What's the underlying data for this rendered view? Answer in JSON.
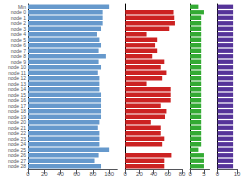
{
  "chart_data": [
    {
      "type": "bar",
      "orientation": "horizontal",
      "categories": [
        "Min",
        "node 0",
        "node 1",
        "node 2",
        "node 3",
        "node 4",
        "node 5",
        "node 6",
        "node 7",
        "node 8",
        "node 9",
        "node 10",
        "node 11",
        "node 12",
        "node 13",
        "node 14",
        "node 15",
        "node 16",
        "node 17",
        "node 18",
        "node 19",
        "node 20",
        "node 21",
        "node 22",
        "node 23",
        "node 24",
        "node 25",
        "node 26",
        "node 27",
        "node 28"
      ],
      "values": [
        100,
        92,
        92,
        92,
        90,
        85,
        88,
        90,
        87,
        96,
        87,
        90,
        86,
        88,
        88,
        88,
        90,
        90,
        90,
        90,
        90,
        88,
        86,
        88,
        88,
        88,
        100,
        87,
        82,
        90
      ],
      "color": "#6699cc",
      "xlim": [
        0,
        110
      ],
      "xticks": [
        0,
        20,
        40,
        60,
        80,
        100
      ],
      "grid": false
    },
    {
      "type": "bar",
      "orientation": "horizontal",
      "categories": [
        "Min",
        "node 0",
        "node 1",
        "node 2",
        "node 3",
        "node 4",
        "node 5",
        "node 6",
        "node 7",
        "node 8",
        "node 9",
        "node 10",
        "node 11",
        "node 12",
        "node 13",
        "node 14",
        "node 15",
        "node 16",
        "node 17",
        "node 18",
        "node 19",
        "node 20",
        "node 21",
        "node 22",
        "node 23",
        "node 24",
        "node 25",
        "node 26",
        "node 27",
        "node 28"
      ],
      "values": [
        0,
        68,
        69,
        70,
        62,
        30,
        45,
        42,
        45,
        38,
        55,
        50,
        58,
        52,
        30,
        64,
        64,
        64,
        50,
        58,
        56,
        36,
        50,
        50,
        55,
        52,
        0,
        65,
        55,
        55
      ],
      "color": "#cc2222",
      "xlim": [
        0,
        80
      ],
      "xticks": [
        0,
        20,
        40,
        60,
        80
      ],
      "grid": false,
      "tick_labels": "x"
    },
    {
      "type": "bar",
      "orientation": "horizontal",
      "categories": [
        "Min",
        "node 0",
        "node 1",
        "node 2",
        "node 3",
        "node 4",
        "node 5",
        "node 6",
        "node 7",
        "node 8",
        "node 9",
        "node 10",
        "node 11",
        "node 12",
        "node 13",
        "node 14",
        "node 15",
        "node 16",
        "node 17",
        "node 18",
        "node 19",
        "node 20",
        "node 21",
        "node 22",
        "node 23",
        "node 24",
        "node 25",
        "node 26",
        "node 27",
        "node 28"
      ],
      "values": [
        3,
        5,
        4,
        4,
        4,
        4,
        4,
        4,
        4,
        4,
        4,
        4,
        4,
        4,
        4,
        4,
        4,
        4,
        4,
        4,
        4,
        4,
        4,
        4,
        4,
        4,
        3,
        5,
        5,
        5
      ],
      "color": "#33aa33",
      "xlim": [
        0,
        7
      ],
      "xticks": [
        0,
        5
      ],
      "grid": false,
      "tick_labels": "x"
    },
    {
      "type": "bar",
      "orientation": "horizontal",
      "categories": [
        "Min",
        "node 0",
        "node 1",
        "node 2",
        "node 3",
        "node 4",
        "node 5",
        "node 6",
        "node 7",
        "node 8",
        "node 9",
        "node 10",
        "node 11",
        "node 12",
        "node 13",
        "node 14",
        "node 15",
        "node 16",
        "node 17",
        "node 18",
        "node 19",
        "node 20",
        "node 21",
        "node 22",
        "node 23",
        "node 24",
        "node 25",
        "node 26",
        "node 27",
        "node 28"
      ],
      "values": [
        8,
        8,
        8,
        8,
        8,
        8,
        8,
        8,
        8,
        8,
        8,
        8,
        8,
        8,
        8,
        8,
        8,
        8,
        8,
        8,
        8,
        8,
        8,
        8,
        8,
        8,
        8,
        8,
        8,
        8
      ],
      "color": "#553399",
      "xlim": [
        0,
        10
      ],
      "xticks": [
        0,
        10
      ],
      "grid": false,
      "tick_labels": "x"
    }
  ]
}
